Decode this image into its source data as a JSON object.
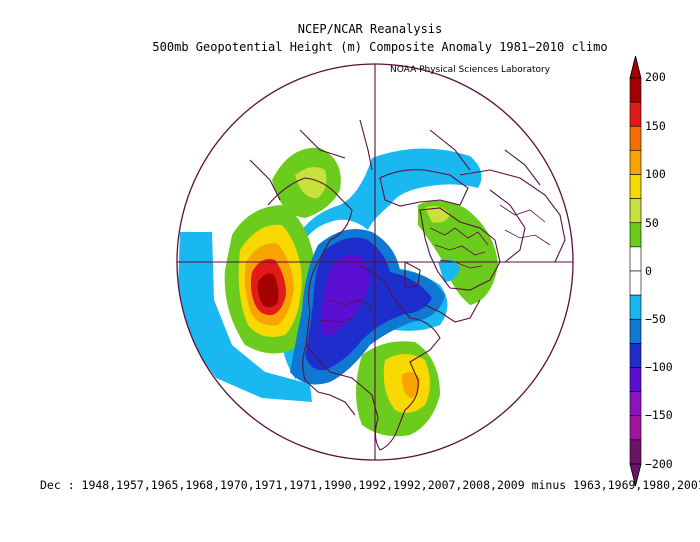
{
  "header": {
    "title_line1": "NCEP/NCAR Reanalysis",
    "title_line2": "500mb Geopotential Height (m) Composite Anomaly 1981−2010 climo",
    "credit": "NOAA Physical Sciences Laboratory"
  },
  "colorbar": {
    "ticks": [
      "200",
      "150",
      "100",
      "50",
      "0",
      "−50",
      "−100",
      "−150",
      "−200"
    ],
    "colors": [
      "#a50000",
      "#e11a1a",
      "#f56c00",
      "#f7a300",
      "#f7d800",
      "#c8e13c",
      "#6ccc1e",
      "#ffffff",
      "#ffffff",
      "#1ab8f0",
      "#0f78d2",
      "#1e2ecd",
      "#5a0fd2",
      "#8c14bf",
      "#a0169e",
      "#6b1466"
    ]
  },
  "footer": {
    "text": "Dec : 1948,1957,1965,1968,1970,1971,1971,1990,1992,1992,2007,2008,2009  minus  1963,1969,1980,2001"
  }
}
